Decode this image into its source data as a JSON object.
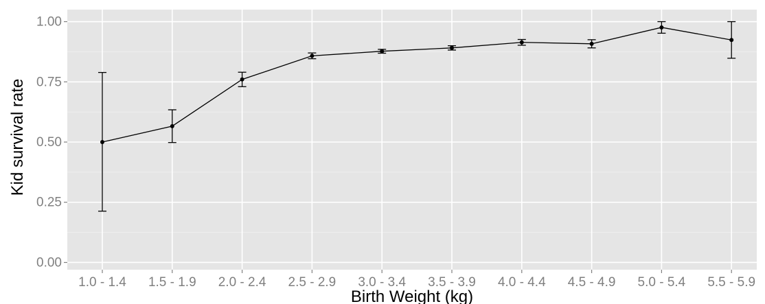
{
  "chart_data": {
    "type": "line",
    "title": "",
    "xlabel": "Birth Weight (kg)",
    "ylabel": "Kid survival rate",
    "categories": [
      "1.0 - 1.4",
      "1.5 - 1.9",
      "2.0 - 2.4",
      "2.5 - 2.9",
      "3.0 - 3.4",
      "3.5 - 3.9",
      "4.0 - 4.4",
      "4.5 - 4.9",
      "5.0 - 5.4",
      "5.5 - 5.9"
    ],
    "values": [
      0.5,
      0.566,
      0.76,
      0.858,
      0.877,
      0.891,
      0.914,
      0.908,
      0.976,
      0.924
    ],
    "error_lower": [
      0.213,
      0.498,
      0.73,
      0.846,
      0.869,
      0.882,
      0.902,
      0.891,
      0.952,
      0.848
    ],
    "error_upper": [
      0.789,
      0.634,
      0.79,
      0.87,
      0.885,
      0.9,
      0.926,
      0.925,
      1.0,
      1.0
    ],
    "yticks": [
      0.0,
      0.25,
      0.5,
      0.75,
      1.0
    ],
    "ytick_labels": [
      "0.00",
      "0.25",
      "0.50",
      "0.75",
      "1.00"
    ],
    "ylim": [
      -0.03,
      1.05
    ],
    "grid": true,
    "legend": "none",
    "colors": {
      "panel": "#e5e5e5",
      "grid": "#ffffff",
      "series": "#000000",
      "tick_label": "#7f7f7f"
    }
  }
}
